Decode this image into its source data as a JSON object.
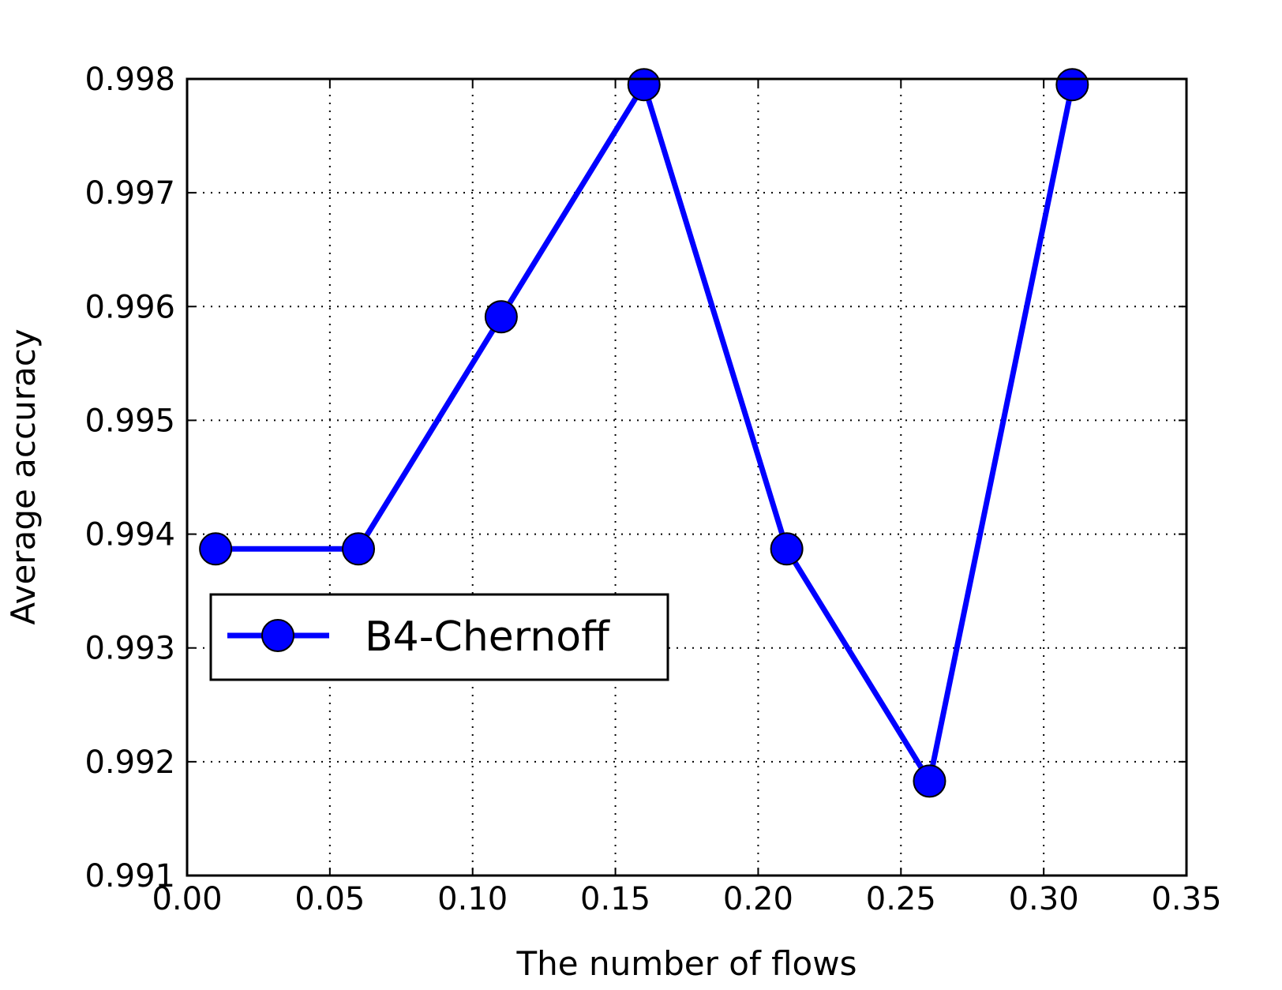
{
  "chart_data": {
    "type": "line",
    "xlabel": "The number of flows",
    "ylabel": "Average accuracy",
    "xlim": [
      0.0,
      0.35
    ],
    "ylim": [
      0.991,
      0.998
    ],
    "xticks": [
      "0.00",
      "0.05",
      "0.10",
      "0.15",
      "0.20",
      "0.25",
      "0.30",
      "0.35"
    ],
    "yticks": [
      "0.991",
      "0.992",
      "0.993",
      "0.994",
      "0.995",
      "0.996",
      "0.997",
      "0.998"
    ],
    "grid": true,
    "legend_position": "center-left",
    "series": [
      {
        "name": "B4-Chernoff",
        "color": "#0000ff",
        "marker": "circle",
        "x": [
          0.01,
          0.06,
          0.11,
          0.16,
          0.21,
          0.26,
          0.31
        ],
        "y": [
          0.99387,
          0.99387,
          0.99591,
          0.99795,
          0.99387,
          0.99183,
          0.99795
        ]
      }
    ]
  }
}
